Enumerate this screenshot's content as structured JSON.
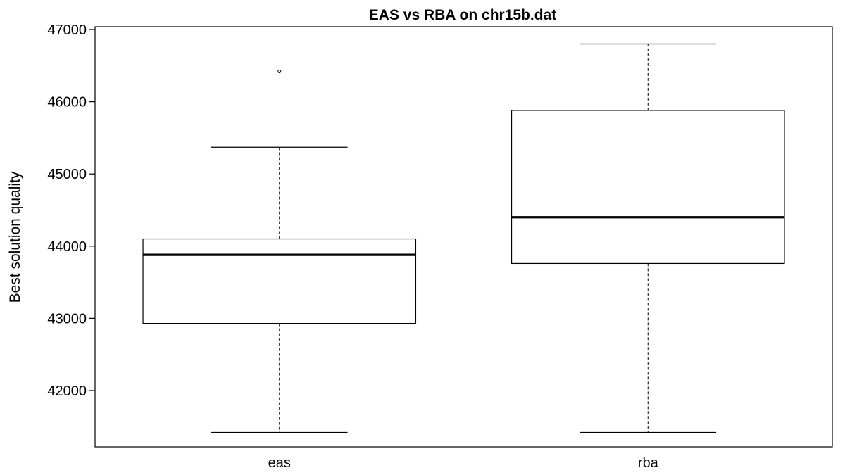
{
  "chart_data": {
    "type": "boxplot",
    "title": "EAS vs RBA on chr15b.dat",
    "xlabel": "",
    "ylabel": "Best solution quality",
    "ylim": [
      41200,
      47000
    ],
    "yticks": [
      42000,
      43000,
      44000,
      45000,
      46000,
      47000
    ],
    "grid": false,
    "categories": [
      "eas",
      "rba"
    ],
    "boxes": [
      {
        "category": "eas",
        "whisker_low": 41420,
        "q1": 42930,
        "median": 43880,
        "q3": 44100,
        "whisker_high": 45370,
        "outliers": [
          46420
        ]
      },
      {
        "category": "rba",
        "whisker_low": 41420,
        "q1": 43760,
        "median": 44400,
        "q3": 45880,
        "whisker_high": 46800,
        "outliers": []
      }
    ],
    "colors": {
      "stroke": "#000000",
      "background": "#ffffff"
    }
  }
}
